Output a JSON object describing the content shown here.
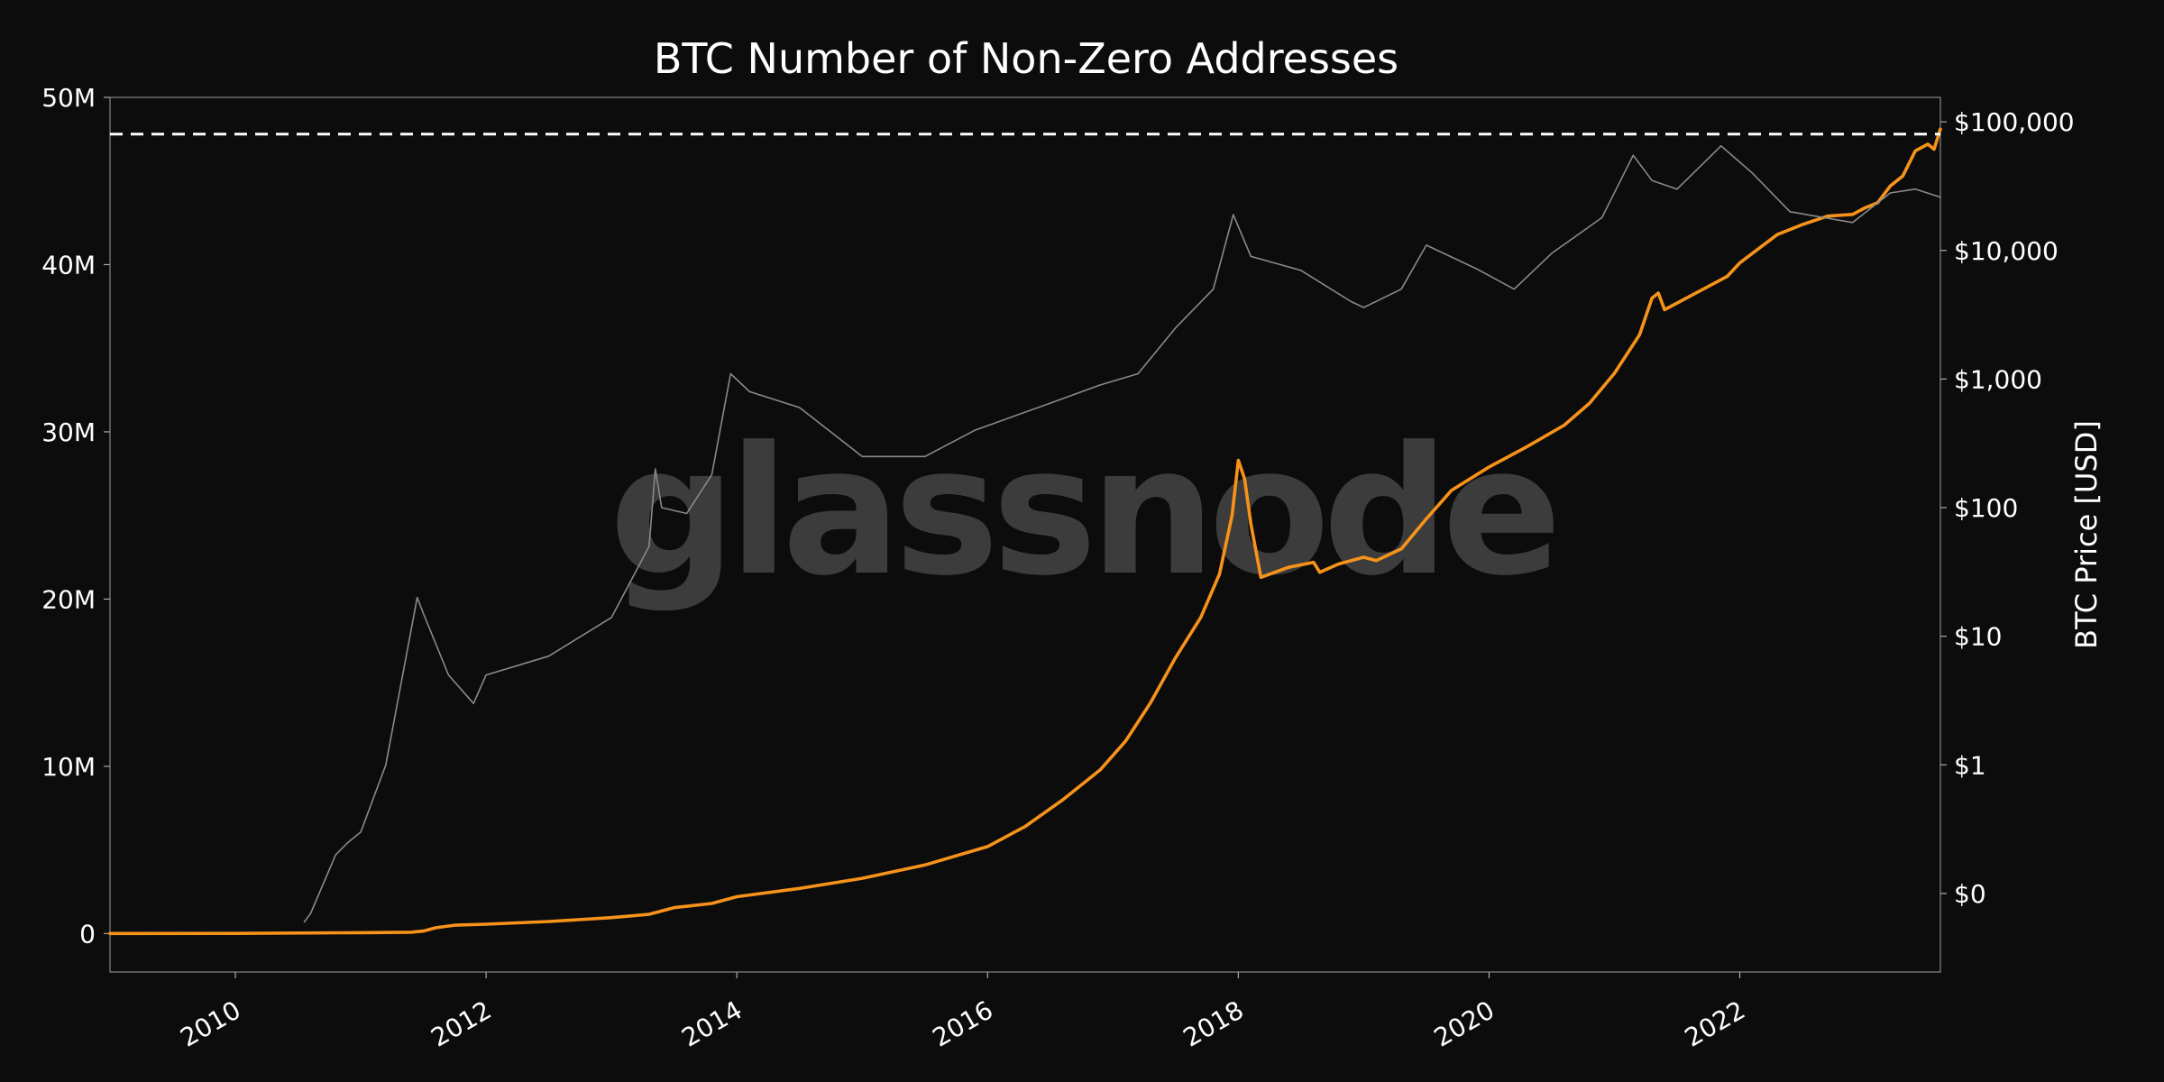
{
  "chart_data": {
    "type": "line",
    "title": "BTC Number of Non-Zero Addresses",
    "xlabel": "",
    "ylabel": "",
    "y2label": "BTC Price [USD]",
    "watermark": "glassnode",
    "grid": false,
    "legend": "none",
    "xlim": [
      2009.0,
      2023.6
    ],
    "ylim": [
      -2300000,
      50000000
    ],
    "y2_scale": "log",
    "y2lim": [
      0.0245,
      155000
    ],
    "x_ticks": [
      {
        "value": 2010,
        "label": "2010"
      },
      {
        "value": 2012,
        "label": "2012"
      },
      {
        "value": 2014,
        "label": "2014"
      },
      {
        "value": 2016,
        "label": "2016"
      },
      {
        "value": 2018,
        "label": "2018"
      },
      {
        "value": 2020,
        "label": "2020"
      },
      {
        "value": 2022,
        "label": "2022"
      }
    ],
    "y_ticks": [
      {
        "value": 0,
        "label": "0"
      },
      {
        "value": 10000000,
        "label": "10M"
      },
      {
        "value": 20000000,
        "label": "20M"
      },
      {
        "value": 30000000,
        "label": "30M"
      },
      {
        "value": 40000000,
        "label": "40M"
      },
      {
        "value": 50000000,
        "label": "50M"
      }
    ],
    "y2_ticks": [
      {
        "value": 0.1,
        "label": "$0"
      },
      {
        "value": 1,
        "label": "$1"
      },
      {
        "value": 10,
        "label": "$10"
      },
      {
        "value": 100,
        "label": "$100"
      },
      {
        "value": 1000,
        "label": "$1,000"
      },
      {
        "value": 10000,
        "label": "$10,000"
      },
      {
        "value": 100000,
        "label": "$100,000"
      }
    ],
    "ath_line": {
      "value": 47800000,
      "style": "dashed",
      "color": "#ffffff"
    },
    "series": [
      {
        "axis": "left",
        "color": "#f7931a",
        "points": [
          [
            2009.0,
            0
          ],
          [
            2010.0,
            5000
          ],
          [
            2011.0,
            50000
          ],
          [
            2011.4,
            80000
          ],
          [
            2011.5,
            150000
          ],
          [
            2011.6,
            350000
          ],
          [
            2011.75,
            500000
          ],
          [
            2012.0,
            560000
          ],
          [
            2012.5,
            720000
          ],
          [
            2013.0,
            950000
          ],
          [
            2013.3,
            1150000
          ],
          [
            2013.5,
            1550000
          ],
          [
            2013.8,
            1800000
          ],
          [
            2014.0,
            2200000
          ],
          [
            2014.5,
            2700000
          ],
          [
            2015.0,
            3300000
          ],
          [
            2015.5,
            4100000
          ],
          [
            2016.0,
            5200000
          ],
          [
            2016.3,
            6400000
          ],
          [
            2016.6,
            8000000
          ],
          [
            2016.9,
            9800000
          ],
          [
            2017.1,
            11500000
          ],
          [
            2017.3,
            13800000
          ],
          [
            2017.5,
            16500000
          ],
          [
            2017.7,
            18900000
          ],
          [
            2017.85,
            21500000
          ],
          [
            2017.95,
            25000000
          ],
          [
            2018.0,
            28300000
          ],
          [
            2018.05,
            27200000
          ],
          [
            2018.1,
            24500000
          ],
          [
            2018.18,
            21300000
          ],
          [
            2018.4,
            21900000
          ],
          [
            2018.6,
            22200000
          ],
          [
            2018.65,
            21600000
          ],
          [
            2018.8,
            22100000
          ],
          [
            2019.0,
            22500000
          ],
          [
            2019.1,
            22300000
          ],
          [
            2019.3,
            23000000
          ],
          [
            2019.5,
            24800000
          ],
          [
            2019.7,
            26500000
          ],
          [
            2020.0,
            27900000
          ],
          [
            2020.3,
            29100000
          ],
          [
            2020.6,
            30400000
          ],
          [
            2020.8,
            31700000
          ],
          [
            2021.0,
            33500000
          ],
          [
            2021.2,
            35800000
          ],
          [
            2021.3,
            38000000
          ],
          [
            2021.35,
            38300000
          ],
          [
            2021.4,
            37300000
          ],
          [
            2021.6,
            38100000
          ],
          [
            2021.9,
            39300000
          ],
          [
            2022.0,
            40100000
          ],
          [
            2022.3,
            41800000
          ],
          [
            2022.5,
            42400000
          ],
          [
            2022.7,
            42900000
          ],
          [
            2022.9,
            43000000
          ],
          [
            2023.0,
            43400000
          ],
          [
            2023.1,
            43700000
          ],
          [
            2023.2,
            44700000
          ],
          [
            2023.3,
            45300000
          ],
          [
            2023.4,
            46800000
          ],
          [
            2023.5,
            47200000
          ],
          [
            2023.55,
            46900000
          ],
          [
            2023.6,
            48100000
          ]
        ]
      },
      {
        "axis": "right",
        "color": "#8a8a8a",
        "points": [
          [
            2010.55,
            0.06
          ],
          [
            2010.6,
            0.07
          ],
          [
            2010.8,
            0.2
          ],
          [
            2010.9,
            0.25
          ],
          [
            2011.0,
            0.3
          ],
          [
            2011.2,
            1.0
          ],
          [
            2011.45,
            20
          ],
          [
            2011.5,
            15
          ],
          [
            2011.7,
            5
          ],
          [
            2011.9,
            3
          ],
          [
            2012.0,
            5
          ],
          [
            2012.5,
            7
          ],
          [
            2013.0,
            14
          ],
          [
            2013.3,
            50
          ],
          [
            2013.35,
            200
          ],
          [
            2013.4,
            100
          ],
          [
            2013.6,
            90
          ],
          [
            2013.8,
            180
          ],
          [
            2013.95,
            1100
          ],
          [
            2014.1,
            800
          ],
          [
            2014.5,
            600
          ],
          [
            2015.0,
            250
          ],
          [
            2015.5,
            250
          ],
          [
            2015.9,
            400
          ],
          [
            2016.5,
            650
          ],
          [
            2016.9,
            900
          ],
          [
            2017.2,
            1100
          ],
          [
            2017.5,
            2500
          ],
          [
            2017.8,
            5000
          ],
          [
            2017.96,
            19000
          ],
          [
            2018.1,
            9000
          ],
          [
            2018.5,
            7000
          ],
          [
            2018.9,
            4000
          ],
          [
            2019.0,
            3600
          ],
          [
            2019.3,
            5000
          ],
          [
            2019.5,
            11000
          ],
          [
            2019.9,
            7200
          ],
          [
            2020.2,
            5000
          ],
          [
            2020.5,
            9500
          ],
          [
            2020.9,
            18000
          ],
          [
            2021.15,
            55000
          ],
          [
            2021.3,
            35000
          ],
          [
            2021.5,
            30000
          ],
          [
            2021.85,
            65000
          ],
          [
            2022.1,
            40000
          ],
          [
            2022.4,
            20000
          ],
          [
            2022.9,
            16500
          ],
          [
            2023.2,
            28000
          ],
          [
            2023.4,
            30000
          ],
          [
            2023.6,
            26000
          ]
        ]
      }
    ]
  }
}
